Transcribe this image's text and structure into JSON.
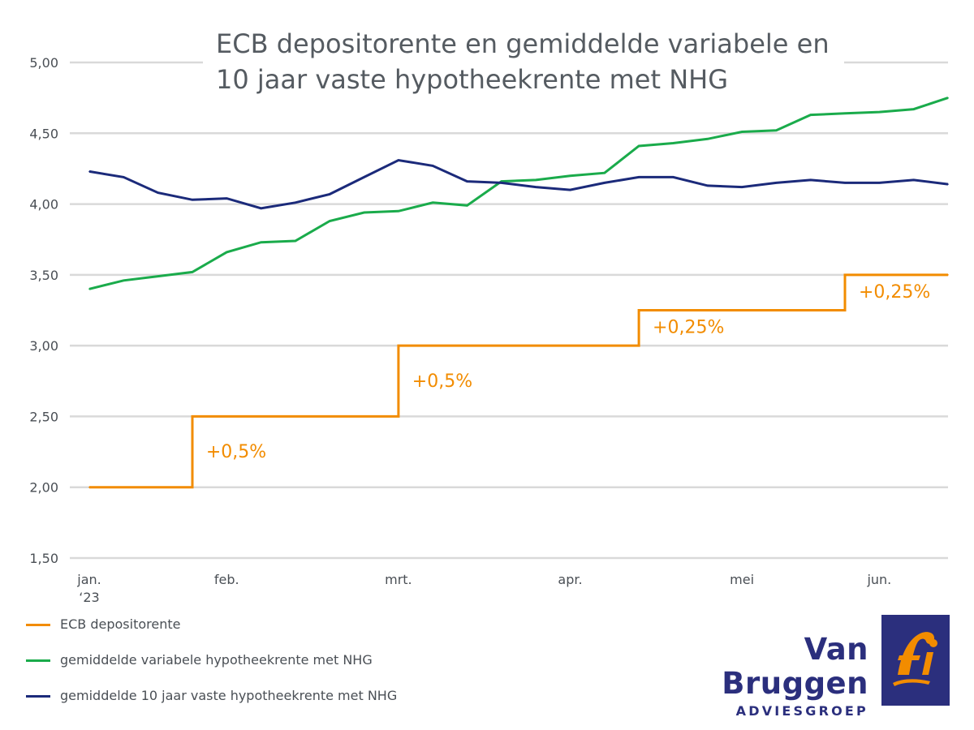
{
  "title": {
    "line1": "ECB depositorente en gemiddelde variabele en",
    "line2": "10 jaar vaste hypotheekrente met NHG"
  },
  "chart_data": {
    "type": "line",
    "title": "ECB depositorente en gemiddelde variabele en 10 jaar vaste hypotheekrente met NHG",
    "xlabel": "",
    "ylabel": "",
    "ylim": [
      1.5,
      5.0
    ],
    "yticks": [
      "1,50",
      "2,00",
      "2,50",
      "3,00",
      "3,50",
      "4,00",
      "4,50",
      "5,00"
    ],
    "yticks_values": [
      1.5,
      2.0,
      2.5,
      3.0,
      3.5,
      4.0,
      4.5,
      5.0
    ],
    "xlim": [
      0,
      25
    ],
    "xticks": [
      {
        "label": "jan.",
        "label2": "‘23",
        "x": 0
      },
      {
        "label": "feb.",
        "x": 4
      },
      {
        "label": "mrt.",
        "x": 9
      },
      {
        "label": "apr.",
        "x": 14
      },
      {
        "label": "mei",
        "x": 19
      },
      {
        "label": "jun.",
        "x": 23
      }
    ],
    "grid": true,
    "series": [
      {
        "name": "ECB depositorente",
        "color": "#f28c00",
        "step": true,
        "x": [
          0,
          3,
          3,
          9,
          9,
          16,
          16,
          22,
          22,
          25
        ],
        "values": [
          2.0,
          2.0,
          2.5,
          2.5,
          3.0,
          3.0,
          3.25,
          3.25,
          3.5,
          3.5
        ]
      },
      {
        "name": "gemiddelde variabele hypotheekrente met NHG",
        "color": "#1aab4b",
        "x": [
          0,
          1,
          2,
          3,
          4,
          5,
          6,
          7,
          8,
          9,
          10,
          11,
          12,
          13,
          14,
          15,
          16,
          17,
          18,
          19,
          20,
          21,
          22,
          23,
          24,
          25
        ],
        "values": [
          3.4,
          3.46,
          3.49,
          3.52,
          3.66,
          3.73,
          3.74,
          3.88,
          3.94,
          3.95,
          4.01,
          3.99,
          4.16,
          4.17,
          4.2,
          4.22,
          4.41,
          4.43,
          4.46,
          4.51,
          4.52,
          4.63,
          4.64,
          4.65,
          4.67,
          4.75
        ]
      },
      {
        "name": "gemiddelde 10 jaar vaste hypotheekrente met NHG",
        "color": "#1b2a7a",
        "x": [
          0,
          1,
          2,
          3,
          4,
          5,
          6,
          7,
          8,
          9,
          10,
          11,
          12,
          13,
          14,
          15,
          16,
          17,
          18,
          19,
          20,
          21,
          22,
          23,
          24,
          25
        ],
        "values": [
          4.23,
          4.19,
          4.08,
          4.03,
          4.04,
          3.97,
          4.01,
          4.07,
          4.19,
          4.31,
          4.27,
          4.16,
          4.15,
          4.12,
          4.1,
          4.15,
          4.19,
          4.19,
          4.13,
          4.12,
          4.15,
          4.17,
          4.15,
          4.15,
          4.17,
          4.14
        ]
      }
    ],
    "annotations": [
      {
        "text": "+0,5%",
        "x": 3.4,
        "y": 2.21,
        "color": "#f28c00"
      },
      {
        "text": "+0,5%",
        "x": 9.4,
        "y": 2.71,
        "color": "#f28c00"
      },
      {
        "text": "+0,25%",
        "x": 16.4,
        "y": 3.09,
        "color": "#f28c00"
      },
      {
        "text": "+0,25%",
        "x": 22.4,
        "y": 3.34,
        "color": "#f28c00"
      }
    ]
  },
  "legend": [
    {
      "label": "ECB depositorente",
      "color": "#f28c00"
    },
    {
      "label": "gemiddelde variabele hypotheekrente met NHG",
      "color": "#1aab4b"
    },
    {
      "label": "gemiddelde 10 jaar vaste hypotheekrente met NHG",
      "color": "#1b2a7a"
    }
  ],
  "logo": {
    "name": "Van Bruggen",
    "sub": "ADVIESGROEP",
    "box_color": "#2b2f7d",
    "mark_color": "#f28c00"
  }
}
